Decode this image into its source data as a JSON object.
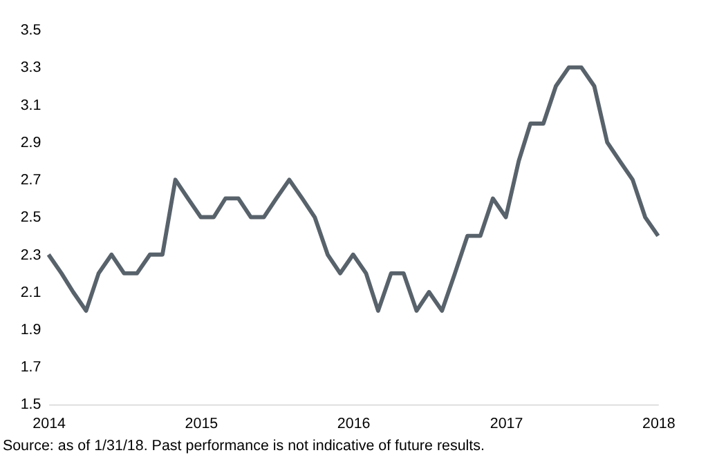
{
  "chart_data": {
    "type": "line",
    "x": [
      "2014-01",
      "2014-02",
      "2014-03",
      "2014-04",
      "2014-05",
      "2014-06",
      "2014-07",
      "2014-08",
      "2014-09",
      "2014-10",
      "2014-11",
      "2014-12",
      "2015-01",
      "2015-02",
      "2015-03",
      "2015-04",
      "2015-05",
      "2015-06",
      "2015-07",
      "2015-08",
      "2015-09",
      "2015-10",
      "2015-11",
      "2015-12",
      "2016-01",
      "2016-02",
      "2016-03",
      "2016-04",
      "2016-05",
      "2016-06",
      "2016-07",
      "2016-08",
      "2016-09",
      "2016-10",
      "2016-11",
      "2016-12",
      "2017-01",
      "2017-02",
      "2017-03",
      "2017-04",
      "2017-05",
      "2017-06",
      "2017-07",
      "2017-08",
      "2017-09",
      "2017-10",
      "2017-11",
      "2017-12",
      "2018-01"
    ],
    "series": [
      {
        "color": "#58626b",
        "values": [
          2.3,
          2.2,
          2.1,
          2.0,
          2.2,
          2.3,
          2.2,
          2.2,
          2.3,
          2.3,
          2.7,
          2.6,
          2.5,
          2.5,
          2.6,
          2.6,
          2.5,
          2.5,
          2.6,
          2.7,
          2.6,
          2.5,
          2.3,
          2.2,
          2.3,
          2.2,
          2.0,
          2.2,
          2.2,
          2.0,
          2.1,
          2.0,
          2.2,
          2.4,
          2.4,
          2.6,
          2.5,
          2.8,
          3.0,
          3.0,
          3.2,
          3.3,
          3.3,
          3.2,
          2.9,
          2.8,
          2.7,
          2.5,
          2.4
        ]
      }
    ],
    "xlim": [
      "2014-01",
      "2018-01"
    ],
    "xticks": [
      "2014",
      "2015",
      "2016",
      "2017",
      "2018"
    ],
    "ylim": [
      1.5,
      3.5
    ],
    "yticks": [
      1.5,
      1.7,
      1.9,
      2.1,
      2.3,
      2.5,
      2.7,
      2.9,
      3.1,
      3.3,
      3.5
    ],
    "grid": false,
    "marker": "none",
    "line_style": "solid",
    "annotations": [
      "Source: as of 1/31/18. Past performance is not indicative of future results."
    ]
  }
}
